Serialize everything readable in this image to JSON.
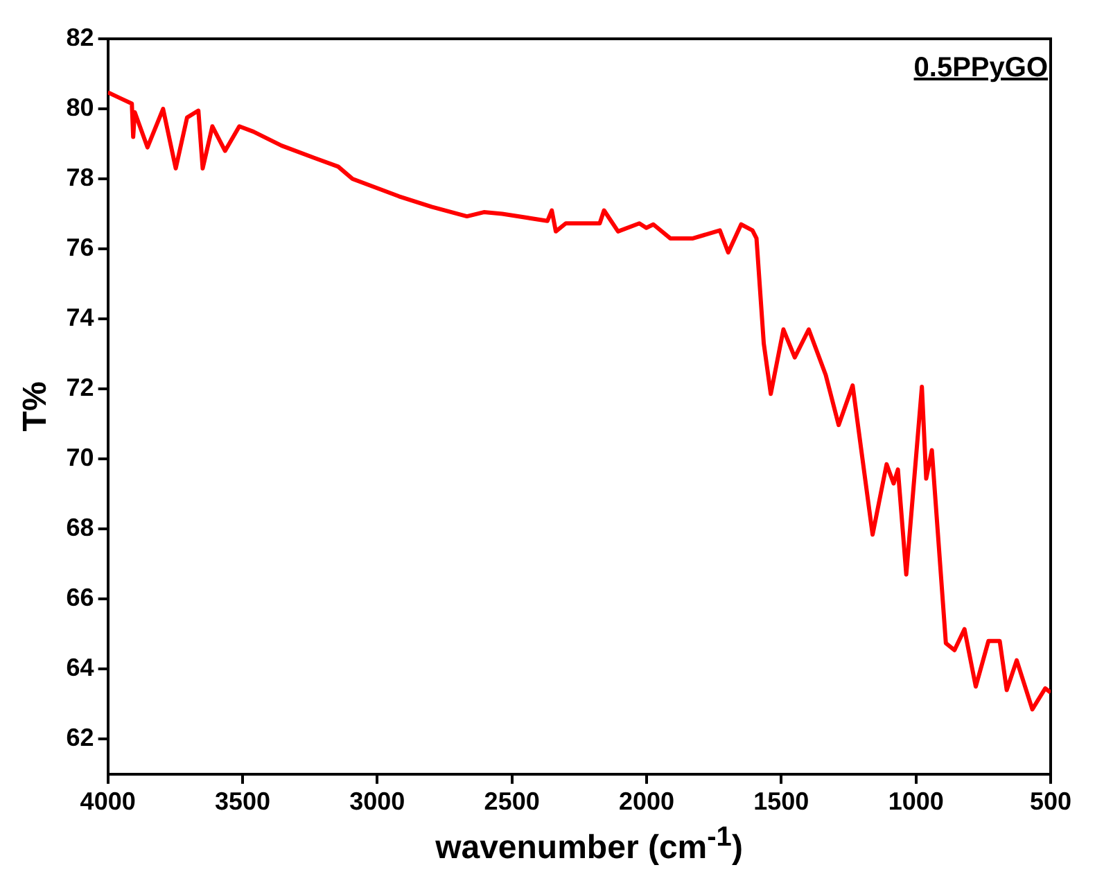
{
  "chart_data": {
    "type": "line",
    "xlabel": "wavenumber (cm$^{-1}$)",
    "ylabel": "T%",
    "annotations": [
      "0.5PPyGO"
    ],
    "xlim": [
      4000,
      500
    ],
    "xticks": [
      4000,
      3500,
      3000,
      2500,
      2000,
      1500,
      1000,
      500
    ],
    "ylim": [
      61,
      82
    ],
    "yticks": [
      62,
      64,
      66,
      68,
      70,
      72,
      74,
      76,
      78,
      80,
      82
    ],
    "grid": false,
    "legend": false,
    "marker": "none",
    "line_style": "solid",
    "series": [
      {
        "color": "#ff0000",
        "x": [
          4000,
          3953,
          3911,
          3906,
          3900,
          3853,
          3795,
          3748,
          3706,
          3664,
          3648,
          3612,
          3565,
          3512,
          3460,
          3355,
          3234,
          3145,
          3092,
          2919,
          2798,
          2667,
          2604,
          2536,
          2368,
          2352,
          2337,
          2300,
          2174,
          2158,
          2106,
          2027,
          2001,
          1975,
          1912,
          1828,
          1728,
          1697,
          1649,
          1607,
          1592,
          1565,
          1539,
          1492,
          1450,
          1398,
          1335,
          1287,
          1235,
          1161,
          1109,
          1083,
          1067,
          1036,
          978,
          962,
          941,
          889,
          857,
          820,
          778,
          731,
          689,
          663,
          626,
          568,
          520,
          500
        ],
        "values": [
          80.47,
          80.3,
          80.15,
          79.2,
          79.9,
          78.9,
          80.0,
          78.3,
          79.75,
          79.95,
          78.3,
          79.5,
          78.8,
          79.5,
          79.35,
          78.95,
          78.6,
          78.35,
          78.0,
          77.5,
          77.2,
          76.93,
          77.05,
          77.0,
          76.8,
          77.1,
          76.5,
          76.73,
          76.73,
          77.1,
          76.5,
          76.73,
          76.6,
          76.7,
          76.3,
          76.3,
          76.53,
          75.9,
          76.7,
          76.53,
          76.3,
          73.3,
          71.86,
          73.7,
          72.9,
          73.7,
          72.4,
          70.97,
          72.1,
          67.84,
          69.85,
          69.3,
          69.7,
          66.7,
          72.06,
          69.44,
          70.25,
          64.74,
          64.54,
          65.14,
          63.5,
          64.8,
          64.8,
          63.4,
          64.25,
          62.85,
          63.45,
          63.33
        ]
      }
    ]
  }
}
